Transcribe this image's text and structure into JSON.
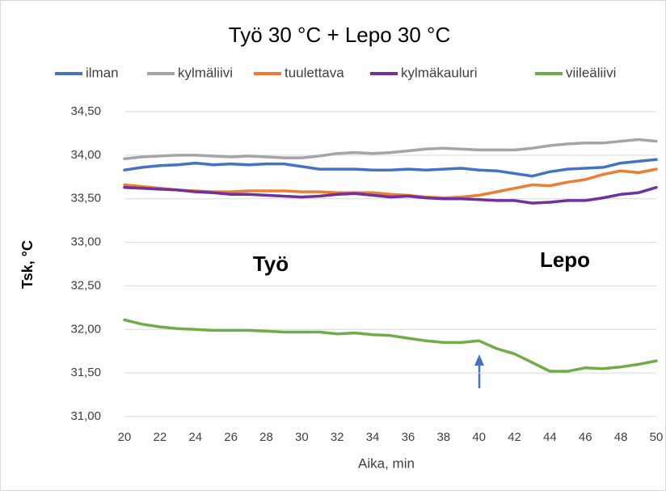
{
  "chart_data": {
    "type": "line",
    "title": "Työ 30 °C + Lepo 30 °C",
    "x_label": "Aika, min",
    "y_label": "Tsk, °C",
    "annotations": [
      "Työ",
      "Lepo"
    ],
    "x": [
      20,
      21,
      22,
      23,
      24,
      25,
      26,
      27,
      28,
      29,
      30,
      31,
      32,
      33,
      34,
      35,
      36,
      37,
      38,
      39,
      40,
      41,
      42,
      43,
      44,
      45,
      46,
      47,
      48,
      49,
      50
    ],
    "xlim": [
      20,
      50
    ],
    "xticks": [
      20,
      22,
      24,
      26,
      28,
      30,
      32,
      34,
      36,
      38,
      40,
      42,
      44,
      46,
      48,
      50
    ],
    "ylim": [
      31,
      34.5
    ],
    "yticks": [
      {
        "value": 31,
        "label": "31,00"
      },
      {
        "value": 31.5,
        "label": "31,50"
      },
      {
        "value": 32,
        "label": "32,00"
      },
      {
        "value": 32.5,
        "label": "32,50"
      },
      {
        "value": 33,
        "label": "33,00"
      },
      {
        "value": 33.5,
        "label": "33,50"
      },
      {
        "value": 34,
        "label": "34,00"
      },
      {
        "value": 34.5,
        "label": "34,50"
      }
    ],
    "grid": true,
    "legend": "top",
    "series": [
      {
        "name": "ilman",
        "color": "#4472c4",
        "values": [
          33.83,
          33.86,
          33.88,
          33.89,
          33.91,
          33.89,
          33.9,
          33.89,
          33.9,
          33.9,
          33.87,
          33.84,
          33.84,
          33.84,
          33.83,
          33.83,
          33.84,
          33.83,
          33.84,
          33.85,
          33.83,
          33.82,
          33.79,
          33.76,
          33.81,
          33.84,
          33.85,
          33.86,
          33.91,
          33.93,
          33.95
        ]
      },
      {
        "name": "kylmäliivi",
        "color": "#a5a5a5",
        "values": [
          33.96,
          33.98,
          33.99,
          34.0,
          34.0,
          33.99,
          33.98,
          33.99,
          33.98,
          33.97,
          33.97,
          33.99,
          34.02,
          34.03,
          34.02,
          34.03,
          34.05,
          34.07,
          34.08,
          34.07,
          34.06,
          34.06,
          34.06,
          34.08,
          34.11,
          34.13,
          34.14,
          34.14,
          34.16,
          34.18,
          34.16
        ]
      },
      {
        "name": "tuulettava",
        "color": "#ed7d31",
        "values": [
          33.66,
          33.64,
          33.62,
          33.6,
          33.59,
          33.58,
          33.58,
          33.59,
          33.59,
          33.59,
          33.58,
          33.58,
          33.57,
          33.57,
          33.57,
          33.55,
          33.54,
          33.52,
          33.51,
          33.52,
          33.54,
          33.58,
          33.62,
          33.66,
          33.65,
          33.69,
          33.72,
          33.78,
          33.82,
          33.8,
          33.84
        ]
      },
      {
        "name": "kylmäkauluri",
        "color": "#7030a0",
        "values": [
          33.63,
          33.62,
          33.61,
          33.6,
          33.58,
          33.57,
          33.55,
          33.55,
          33.54,
          33.53,
          33.52,
          33.53,
          33.55,
          33.56,
          33.54,
          33.52,
          33.53,
          33.51,
          33.5,
          33.5,
          33.49,
          33.48,
          33.48,
          33.45,
          33.46,
          33.48,
          33.48,
          33.51,
          33.55,
          33.57,
          33.63
        ]
      },
      {
        "name": "viileäliivi",
        "color": "#70ad47",
        "values": [
          32.11,
          32.06,
          32.03,
          32.01,
          32.0,
          31.99,
          31.99,
          31.99,
          31.98,
          31.97,
          31.97,
          31.97,
          31.95,
          31.96,
          31.94,
          31.93,
          31.9,
          31.87,
          31.85,
          31.85,
          31.87,
          31.78,
          31.72,
          31.62,
          31.52,
          31.52,
          31.56,
          31.55,
          31.57,
          31.6,
          31.64
        ]
      }
    ]
  }
}
